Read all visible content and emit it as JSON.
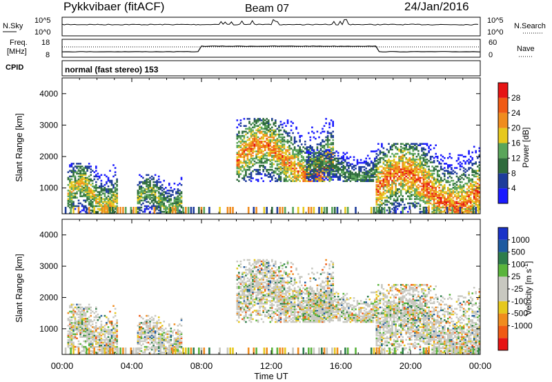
{
  "header": {
    "station": "Pykkvibaer (fitACF)",
    "beam": "Beam 07",
    "date": "24/Jan/2016"
  },
  "top_panels": {
    "nsky_label": "N.Sky",
    "nsky_ticks": [
      "10^5",
      "10^0"
    ],
    "nsearch_label": "N.Search",
    "nsearch_ticks": [
      "10^5",
      "10^0"
    ],
    "freq_label": "Freq.",
    "freq_unit": "[MHz]",
    "freq_ticks": [
      "18",
      "8"
    ],
    "nave_label": "Nave",
    "nave_ticks": [
      "60",
      "0"
    ],
    "cpid_label": "CPID",
    "cpid_value": "normal (fast stereo) 153"
  },
  "colors": {
    "power_scale": [
      "#1a1aff",
      "#1e3c9b",
      "#2e6b3c",
      "#5aa55a",
      "#e6c81e",
      "#f08c1e",
      "#f05a14",
      "#e61414"
    ],
    "velocity_scale": [
      "#e61414",
      "#f05a14",
      "#f08c1e",
      "#e6c81e",
      "#c8c8c0",
      "#c8c8c0",
      "#5ab43c",
      "#2e7d4b",
      "#1e5aa0",
      "#1a32c8"
    ]
  },
  "chart_data": [
    {
      "type": "heatmap",
      "title": "Power",
      "xlabel": "Time UT",
      "ylabel": "Slant Range [km]",
      "x_ticks": [
        "00:00",
        "04:00",
        "08:00",
        "12:00",
        "16:00",
        "20:00",
        "00:00"
      ],
      "xlim": [
        0,
        24
      ],
      "ylim": [
        180,
        4500
      ],
      "y_ticks": [
        1000,
        2000,
        3000,
        4000
      ],
      "colorbar": {
        "label": "Power [dB]",
        "ticks": [
          "4",
          "8",
          "12",
          "16",
          "20",
          "24",
          "28"
        ],
        "range": [
          0,
          32
        ]
      },
      "echo_regions": [
        {
          "t_start": 0.3,
          "t_end": 3.2,
          "r_start": 180,
          "r_end": 1800,
          "peak_db": 22
        },
        {
          "t_start": 4.3,
          "t_end": 6.8,
          "r_start": 180,
          "r_end": 1400,
          "peak_db": 18
        },
        {
          "t_start": 10.0,
          "t_end": 15.5,
          "r_start": 1200,
          "r_end": 3200,
          "peak_db": 28
        },
        {
          "t_start": 14.0,
          "t_end": 18.0,
          "r_start": 1200,
          "r_end": 2200,
          "peak_db": 14
        },
        {
          "t_start": 18.0,
          "t_end": 24.0,
          "r_start": 180,
          "r_end": 2400,
          "peak_db": 30
        }
      ]
    },
    {
      "type": "heatmap",
      "title": "Velocity",
      "xlabel": "Time UT",
      "ylabel": "Slant Range [km]",
      "x_ticks": [
        "00:00",
        "04:00",
        "08:00",
        "12:00",
        "16:00",
        "20:00",
        "00:00"
      ],
      "xlim": [
        0,
        24
      ],
      "ylim": [
        180,
        4500
      ],
      "y_ticks": [
        1000,
        2000,
        3000,
        4000
      ],
      "colorbar": {
        "label": "Velocity [m s^-1]",
        "ticks": [
          "1000",
          "500",
          "100",
          "25",
          "-25",
          "-100",
          "-500",
          "-1000"
        ]
      },
      "echo_regions": [
        {
          "t_start": 0.3,
          "t_end": 3.2,
          "r_start": 180,
          "r_end": 1800,
          "dominant_velocity": 0
        },
        {
          "t_start": 10.0,
          "t_end": 18.0,
          "r_start": 1200,
          "r_end": 3200,
          "dominant_velocity": 0
        },
        {
          "t_start": 12.5,
          "t_end": 15.0,
          "r_start": 2200,
          "r_end": 3100,
          "dominant_velocity": -300
        },
        {
          "t_start": 18.0,
          "t_end": 24.0,
          "r_start": 180,
          "r_end": 2400,
          "dominant_velocity": 0
        }
      ]
    }
  ]
}
